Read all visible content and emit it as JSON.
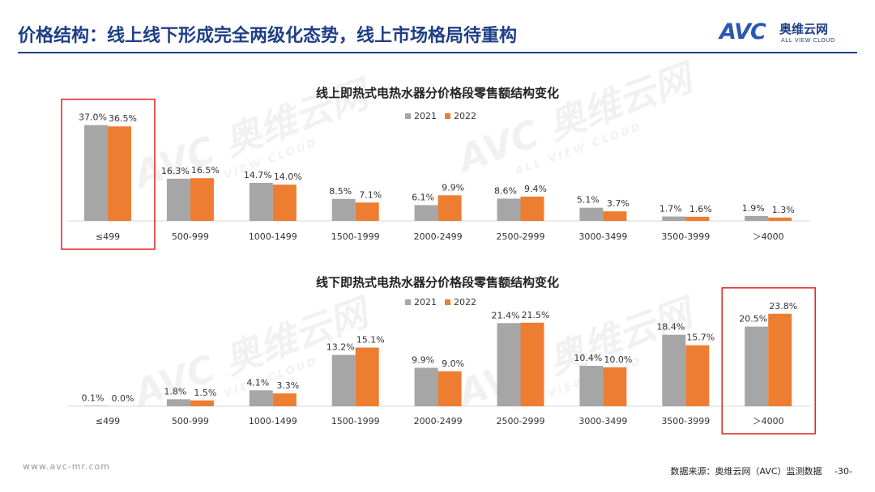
{
  "header": {
    "title": "价格结构：线上线下形成完全两级化态势，线上市场格局待重构"
  },
  "logo": {
    "mark": "AVC",
    "cn": "奥维云网",
    "en": "ALL VIEW CLOUD"
  },
  "watermark": {
    "cn": "奥维云网",
    "en": "ALL VIEW CLOUD"
  },
  "colors": {
    "series_2021": "#a6a6a6",
    "series_2022": "#ed7d31",
    "highlight": "#e02020",
    "header": "#1f3f86"
  },
  "chart_data": [
    {
      "type": "bar",
      "title": "线上即热式电热水器分价格段零售额结构变化",
      "categories": [
        "≤499",
        "500-999",
        "1000-1499",
        "1500-1999",
        "2000-2499",
        "2500-2999",
        "3000-3499",
        "3500-3999",
        "＞4000"
      ],
      "series": [
        {
          "name": "2021",
          "values": [
            37.0,
            16.3,
            14.7,
            8.5,
            6.1,
            8.6,
            5.1,
            1.7,
            1.9
          ],
          "labels": [
            "37.0%",
            "16.3%",
            "14.7%",
            "8.5%",
            "6.1%",
            "8.6%",
            "5.1%",
            "1.7%",
            "1.9%"
          ]
        },
        {
          "name": "2022",
          "values": [
            36.5,
            16.5,
            14.0,
            7.1,
            9.9,
            9.4,
            3.7,
            1.6,
            1.3
          ],
          "labels": [
            "36.5%",
            "16.5%",
            "14.0%",
            "7.1%",
            "9.9%",
            "9.4%",
            "3.7%",
            "1.6%",
            "1.3%"
          ]
        }
      ],
      "highlight_category": 0,
      "legend": "top-center"
    },
    {
      "type": "bar",
      "title": "线下即热式电热水器分价格段零售额结构变化",
      "categories": [
        "≤499",
        "500-999",
        "1000-1499",
        "1500-1999",
        "2000-2499",
        "2500-2999",
        "3000-3499",
        "3500-3999",
        "＞4000"
      ],
      "series": [
        {
          "name": "2021",
          "values": [
            0.1,
            1.8,
            4.1,
            13.2,
            9.9,
            21.4,
            10.4,
            18.4,
            20.5
          ],
          "labels": [
            "0.1%",
            "1.8%",
            "4.1%",
            "13.2%",
            "9.9%",
            "21.4%",
            "10.4%",
            "18.4%",
            "20.5%"
          ]
        },
        {
          "name": "2022",
          "values": [
            0.0,
            1.5,
            3.3,
            15.1,
            9.0,
            21.5,
            10.0,
            15.7,
            23.8
          ],
          "labels": [
            "0.0%",
            "1.5%",
            "3.3%",
            "15.1%",
            "9.0%",
            "21.5%",
            "10.0%",
            "15.7%",
            "23.8%"
          ]
        }
      ],
      "highlight_category": 8,
      "legend": "top-center"
    }
  ],
  "footer": {
    "url": "www.avc-mr.com",
    "source": "数据来源：奥维云网（AVC）监测数据",
    "page": "-30-"
  }
}
